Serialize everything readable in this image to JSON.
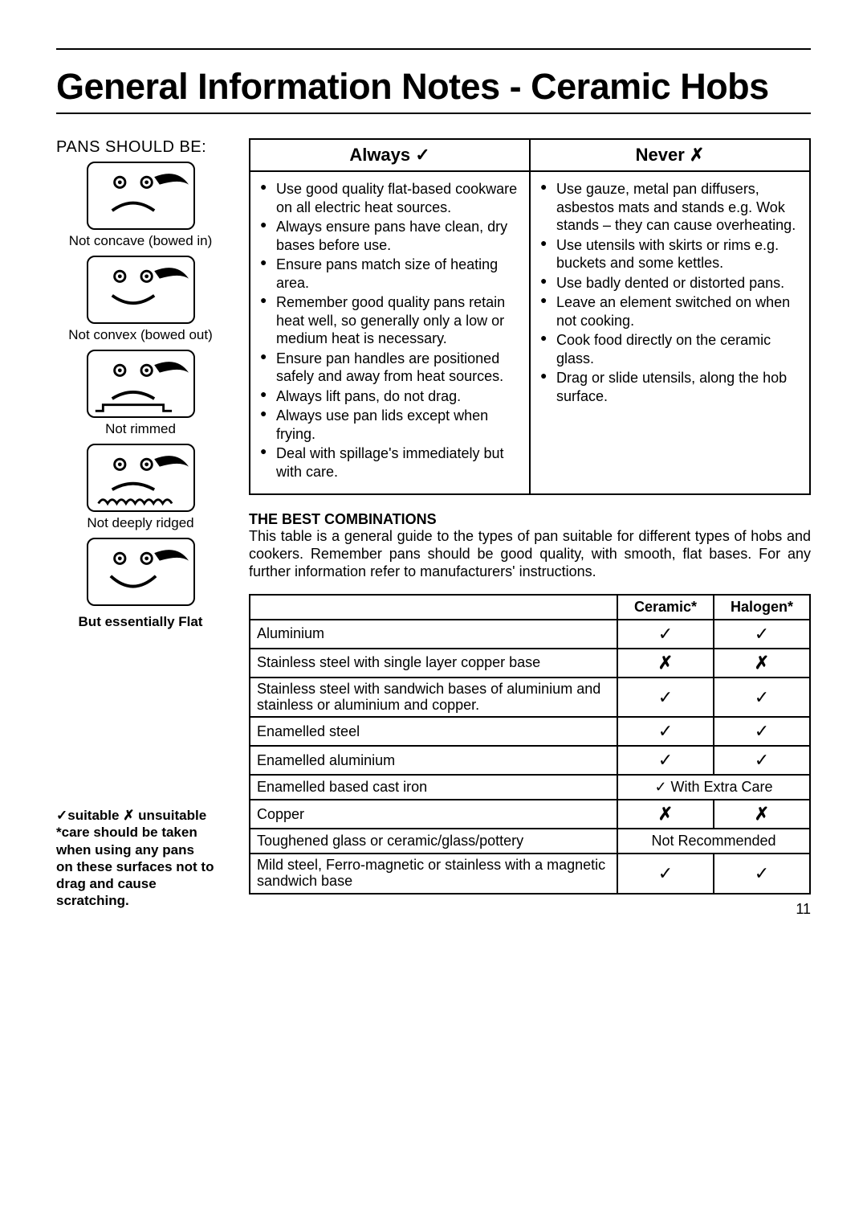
{
  "title": "General Information Notes - Ceramic Hobs",
  "pans_heading": "PANS SHOULD BE:",
  "pan_items": [
    {
      "caption": "Not concave (bowed in)"
    },
    {
      "caption": "Not convex (bowed out)"
    },
    {
      "caption": "Not rimmed"
    },
    {
      "caption": "Not deeply ridged"
    }
  ],
  "pan_flat_caption": "But essentially Flat",
  "legend": "✓suitable ✗ unsuitable\n*care should be taken when using any pans on these surfaces not to drag and cause scratching.",
  "legend_lines": {
    "l1": "✓suitable ✗ unsuitable",
    "l2": "*care should be taken",
    "l3": "when using any pans",
    "l4": "on these surfaces not to",
    "l5": "drag and cause",
    "l6": "scratching."
  },
  "always_header": "Always ✓",
  "never_header": "Never ✗",
  "always_items": [
    "Use good quality flat-based cookware on all electric heat sources.",
    "Always ensure pans have clean, dry bases before use.",
    "Ensure pans match size of heating area.",
    "Remember good quality pans retain heat well, so generally only a low or medium heat is necessary.",
    "Ensure pan handles are positioned safely and away from heat sources.",
    "Always lift pans, do not drag.",
    "Always use pan lids except when frying.",
    "Deal with spillage's immediately but with care."
  ],
  "never_items": [
    "Use gauze, metal pan diffusers, asbestos mats and stands e.g. Wok stands – they can cause overheating.",
    "Use utensils with skirts or rims e.g. buckets and some kettles.",
    "Use badly dented or distorted pans.",
    "Leave an element switched on when not cooking.",
    "Cook food directly on the ceramic glass.",
    "Drag or slide utensils, along the hob surface."
  ],
  "combo_heading": "THE BEST COMBINATIONS",
  "combo_intro": "This table is a general guide to the types of pan suitable for different types of hobs and cookers. Remember pans should be good quality, with smooth, flat bases. For any further information refer to manufacturers' instructions.",
  "combo_columns": {
    "c1": "Ceramic*",
    "c2": "Halogen*"
  },
  "marks": {
    "check": "✓",
    "cross": "✗"
  },
  "combo_rows": [
    {
      "material": "Aluminium",
      "ceramic": "✓",
      "halogen": "✓"
    },
    {
      "material": "Stainless steel with single layer copper base",
      "ceramic": "✗",
      "halogen": "✗"
    },
    {
      "material": "Stainless steel with sandwich bases of aluminium and stainless or aluminium and copper.",
      "ceramic": "✓",
      "halogen": "✓"
    },
    {
      "material": "Enamelled steel",
      "ceramic": "✓",
      "halogen": "✓"
    },
    {
      "material": "Enamelled aluminium",
      "ceramic": "✓",
      "halogen": "✓"
    },
    {
      "material": "Enamelled based cast iron",
      "merged": "✓ With Extra Care"
    },
    {
      "material": "Copper",
      "ceramic": "✗",
      "halogen": "✗"
    },
    {
      "material": "Toughened glass or ceramic/glass/pottery",
      "merged": "Not Recommended"
    },
    {
      "material": "Mild steel, Ferro-magnetic or stainless with a magnetic sandwich base",
      "ceramic": "✓",
      "halogen": "✓"
    }
  ],
  "page_number": "11",
  "colors": {
    "text": "#000000",
    "background": "#ffffff",
    "border": "#000000"
  }
}
